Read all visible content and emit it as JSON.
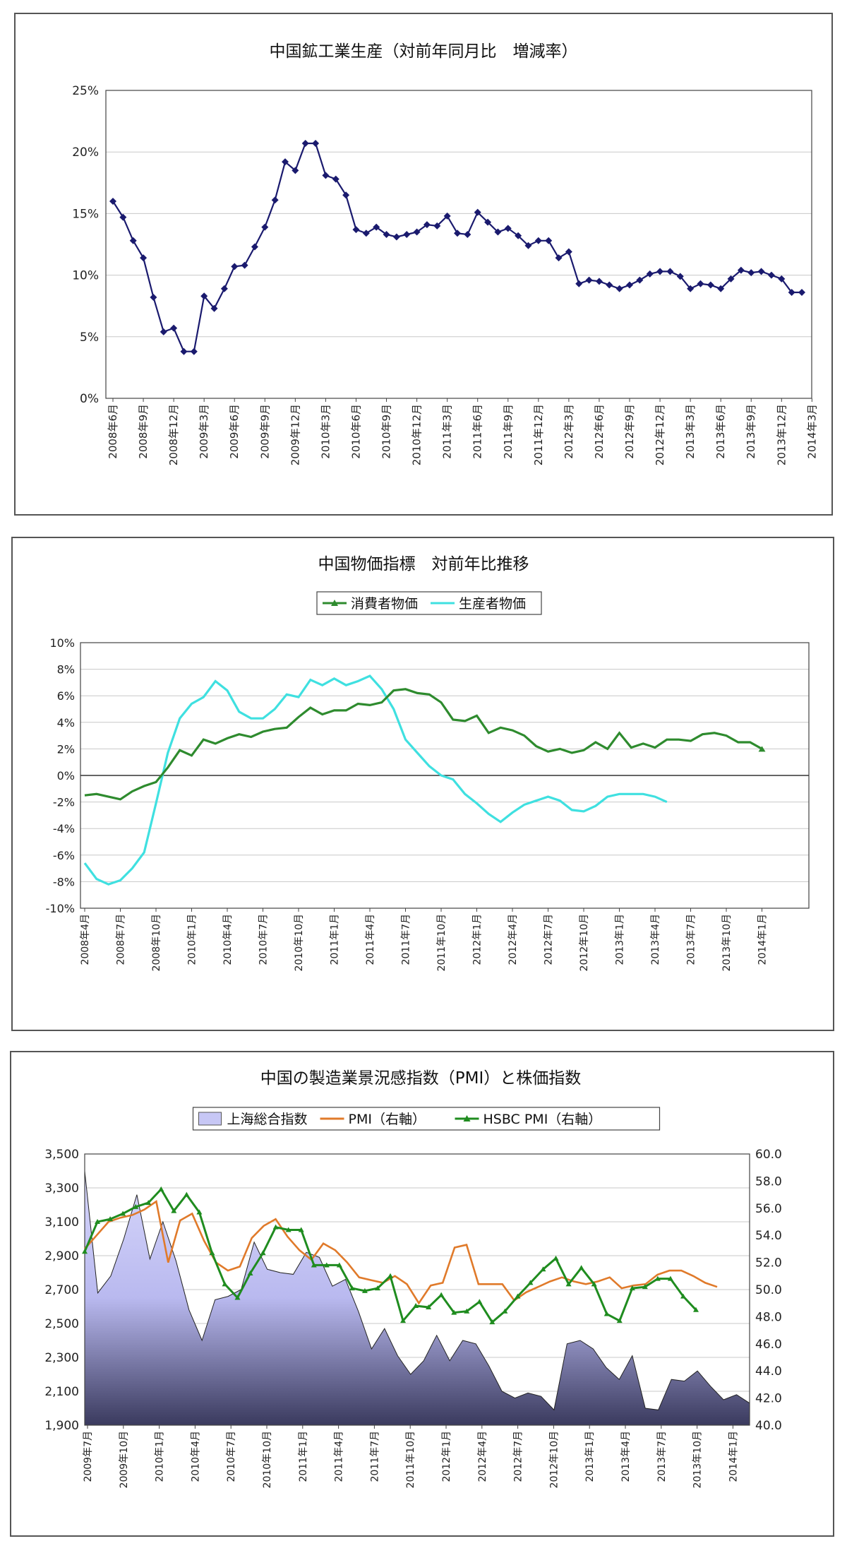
{
  "chart_data": [
    {
      "type": "line",
      "title": "中国鉱工業生産（対前年同月比　増減率）",
      "yticks": [
        "0%",
        "5%",
        "10%",
        "15%",
        "20%",
        "25%"
      ],
      "ylim": [
        0,
        25
      ],
      "xticks": [
        "2008年6月",
        "2008年9月",
        "2008年12月",
        "2009年3月",
        "2009年6月",
        "2009年9月",
        "2009年12月",
        "2010年3月",
        "2010年6月",
        "2010年9月",
        "2010年12月",
        "2011年3月",
        "2011年6月",
        "2011年9月",
        "2011年12月",
        "2012年3月",
        "2012年6月",
        "2012年9月",
        "2012年12月",
        "2013年3月",
        "2013年6月",
        "2013年9月",
        "2013年12月",
        "2014年3月"
      ],
      "grid": true,
      "legend": "none",
      "series": [
        {
          "color": "#1a1a6e",
          "values": [
            16.0,
            14.7,
            12.8,
            11.4,
            8.2,
            5.4,
            5.7,
            3.8,
            3.8,
            8.3,
            7.3,
            8.9,
            10.7,
            10.8,
            12.3,
            13.9,
            16.1,
            19.2,
            18.5,
            20.7,
            20.7,
            18.1,
            17.8,
            16.5,
            13.7,
            13.4,
            13.9,
            13.3,
            13.1,
            13.3,
            13.5,
            14.1,
            14.0,
            14.8,
            13.4,
            13.3,
            15.1,
            14.3,
            13.5,
            13.8,
            13.2,
            12.4,
            12.8,
            12.8,
            11.4,
            11.9,
            9.3,
            9.6,
            9.5,
            9.2,
            8.9,
            9.2,
            9.6,
            10.1,
            10.3,
            10.3,
            9.9,
            8.9,
            9.3,
            9.2,
            8.9,
            9.7,
            10.4,
            10.2,
            10.3,
            10.0,
            9.7,
            8.6,
            8.6
          ]
        }
      ]
    },
    {
      "type": "line",
      "title": "中国物価指標　対前年比推移",
      "yticks": [
        "-10%",
        "-8%",
        "-6%",
        "-4%",
        "-2%",
        "0%",
        "2%",
        "4%",
        "6%",
        "8%",
        "10%"
      ],
      "ylim": [
        -10,
        10
      ],
      "xticks": [
        "2008年4月",
        "2008年7月",
        "2008年10月",
        "2010年1月",
        "2010年4月",
        "2010年7月",
        "2010年10月",
        "2011年1月",
        "2011年4月",
        "2011年7月",
        "2011年10月",
        "2012年1月",
        "2012年4月",
        "2012年7月",
        "2012年10月",
        "2013年1月",
        "2013年4月",
        "2013年7月",
        "2013年10月",
        "2014年1月"
      ],
      "grid": true,
      "legend": "top-center",
      "series": [
        {
          "name": "消費者物価",
          "color": "#2e8b2e",
          "values": [
            -1.5,
            -1.4,
            -1.6,
            -1.8,
            -1.2,
            -0.8,
            -0.5,
            0.6,
            1.9,
            1.5,
            2.7,
            2.4,
            2.8,
            3.1,
            2.9,
            3.3,
            3.5,
            3.6,
            4.4,
            5.1,
            4.6,
            4.9,
            4.9,
            5.4,
            5.3,
            5.5,
            6.4,
            6.5,
            6.2,
            6.1,
            5.5,
            4.2,
            4.1,
            4.5,
            3.2,
            3.6,
            3.4,
            3.0,
            2.2,
            1.8,
            2.0,
            1.7,
            1.9,
            2.5,
            2.0,
            3.2,
            2.1,
            2.4,
            2.1,
            2.7,
            2.7,
            2.6,
            3.1,
            3.2,
            3.0,
            2.5,
            2.5,
            2.0
          ]
        },
        {
          "name": "生産者物価",
          "color": "#3fe0e0",
          "values": [
            -6.6,
            -7.8,
            -8.2,
            -7.9,
            -7.0,
            -5.8,
            -2.1,
            1.7,
            4.3,
            5.4,
            5.9,
            7.1,
            6.4,
            4.8,
            4.3,
            4.3,
            5.0,
            6.1,
            5.9,
            7.2,
            6.8,
            7.3,
            6.8,
            7.1,
            7.5,
            6.5,
            5.0,
            2.7,
            1.7,
            0.7,
            0.0,
            -0.3,
            -1.4,
            -2.1,
            -2.9,
            -3.5,
            -2.8,
            -2.2,
            -1.9,
            -1.6,
            -1.9,
            -2.6,
            -2.7,
            -2.3,
            -1.6,
            -1.4,
            -1.4,
            -1.4,
            -1.6,
            -2.0
          ]
        }
      ]
    },
    {
      "type": "area",
      "title": "中国の製造業景況感指数（PMI）と株価指数",
      "yticks_left": [
        "1,900",
        "2,100",
        "2,300",
        "2,500",
        "2,700",
        "2,900",
        "3,100",
        "3,300",
        "3,500"
      ],
      "yticks_right": [
        "40.0",
        "42.0",
        "44.0",
        "46.0",
        "48.0",
        "50.0",
        "52.0",
        "54.0",
        "56.0",
        "58.0",
        "60.0"
      ],
      "ylim_left": [
        1900,
        3500
      ],
      "ylim_right": [
        40,
        60
      ],
      "xticks": [
        "2009年7月",
        "2009年10月",
        "2010年1月",
        "2010年4月",
        "2010年7月",
        "2010年10月",
        "2011年1月",
        "2011年4月",
        "2011年7月",
        "2011年10月",
        "2012年1月",
        "2012年4月",
        "2012年7月",
        "2012年10月",
        "2013年1月",
        "2013年4月",
        "2013年7月",
        "2013年10月",
        "2014年1月"
      ],
      "grid": true,
      "legend": "top-center",
      "series": [
        {
          "name": "上海総合指数",
          "axis": "left",
          "color": "#c7c7f5",
          "values": [
            3400,
            2680,
            2780,
            3000,
            3260,
            2880,
            3100,
            2870,
            2580,
            2400,
            2640,
            2660,
            2700,
            2980,
            2820,
            2800,
            2790,
            2920,
            2890,
            2720,
            2760,
            2570,
            2350,
            2470,
            2310,
            2200,
            2280,
            2430,
            2280,
            2400,
            2380,
            2250,
            2100,
            2060,
            2090,
            2070,
            1990,
            2380,
            2400,
            2350,
            2240,
            2170,
            2310,
            2000,
            1990,
            2170,
            2160,
            2220,
            2130,
            2050,
            2080,
            2030
          ]
        },
        {
          "name": "PMI（右軸）",
          "axis": "right",
          "color": "#e07a2a",
          "values": [
            53.0,
            54.0,
            55.0,
            55.3,
            55.5,
            55.9,
            56.5,
            52.0,
            55.1,
            55.6,
            53.6,
            52.0,
            51.4,
            51.7,
            53.8,
            54.7,
            55.2,
            53.9,
            52.9,
            52.2,
            53.4,
            52.9,
            52.0,
            50.9,
            50.7,
            50.5,
            51.0,
            50.4,
            49.0,
            50.3,
            50.5,
            53.1,
            53.3,
            50.4,
            50.4,
            50.4,
            49.2,
            49.8,
            50.2,
            50.6,
            50.9,
            50.6,
            50.4,
            50.6,
            50.9,
            50.1,
            50.3,
            50.4,
            51.1,
            51.4,
            51.4,
            51.0,
            50.5,
            50.2
          ]
        },
        {
          "name": "HSBC PMI（右軸）",
          "axis": "right",
          "color": "#1f8c1f",
          "values": [
            52.8,
            55.0,
            55.2,
            55.6,
            56.1,
            56.4,
            57.4,
            55.8,
            57.0,
            55.7,
            52.7,
            50.4,
            49.4,
            51.2,
            52.7,
            54.6,
            54.4,
            54.4,
            51.8,
            51.8,
            51.8,
            50.1,
            49.9,
            50.1,
            51.0,
            47.7,
            48.8,
            48.7,
            49.6,
            48.3,
            48.4,
            49.1,
            47.6,
            48.4,
            49.5,
            50.5,
            51.5,
            52.3,
            50.4,
            51.6,
            50.4,
            48.2,
            47.7,
            50.1,
            50.2,
            50.8,
            50.8,
            49.5,
            48.5
          ]
        }
      ]
    }
  ]
}
